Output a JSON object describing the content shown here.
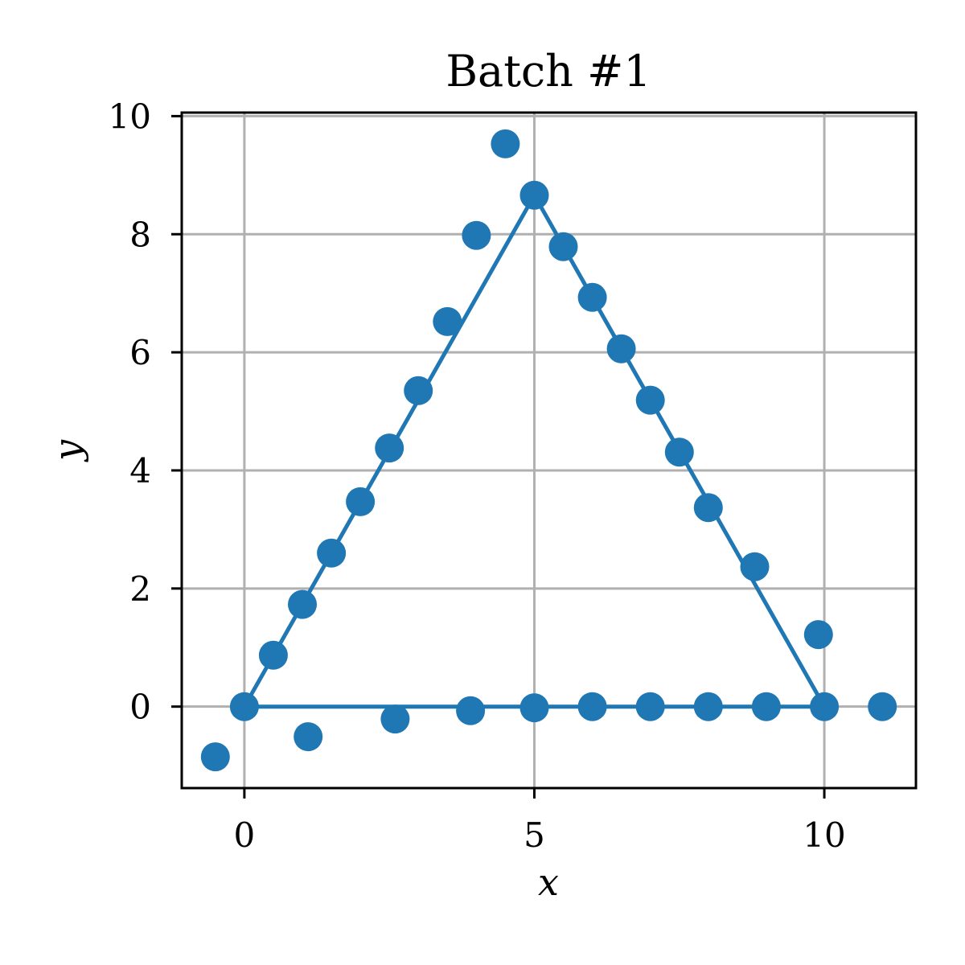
{
  "chart_data": {
    "type": "scatter",
    "title": "Batch #1",
    "xlabel": "x",
    "ylabel": "y",
    "xlim": [
      -1.08,
      11.58
    ],
    "ylim": [
      -1.38,
      10.06
    ],
    "xticks": [
      0,
      5,
      10
    ],
    "yticks": [
      0,
      2,
      4,
      6,
      8,
      10
    ],
    "grid": true,
    "color": "#1f77b4",
    "lines": [
      {
        "x": [
          0,
          5,
          10,
          0
        ],
        "y": [
          0,
          8.66,
          0,
          0
        ]
      }
    ],
    "points": {
      "x": [
        -0.5,
        0,
        0.5,
        1,
        1.5,
        2,
        2.5,
        3,
        3.5,
        4,
        4.5,
        5,
        5.5,
        6,
        6.5,
        7,
        7.5,
        8,
        8.8,
        9.9,
        1.1,
        2.6,
        3.9,
        5,
        6,
        7,
        8,
        9,
        10,
        11
      ],
      "y": [
        -0.85,
        0,
        0.87,
        1.73,
        2.6,
        3.47,
        4.38,
        5.35,
        6.52,
        7.98,
        9.53,
        8.66,
        7.79,
        6.93,
        6.06,
        5.19,
        4.31,
        3.37,
        2.37,
        1.22,
        -0.51,
        -0.21,
        -0.07,
        -0.02,
        0,
        0,
        0,
        0,
        0,
        0
      ]
    }
  }
}
